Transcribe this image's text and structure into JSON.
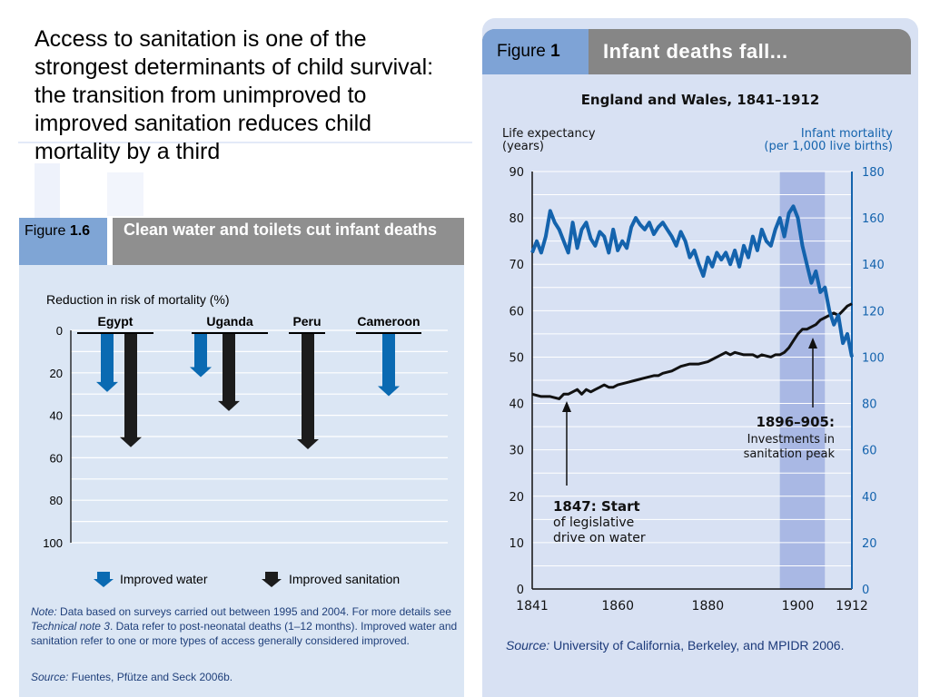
{
  "intro_text": "Access to sanitation is one of the strongest determinants of child survival: the transition from unimproved to improved sanitation reduces child mortality by a third",
  "figure_left": {
    "label_prefix": "Figure",
    "label_number": "1.6",
    "title": "Clean water and toilets cut infant deaths",
    "note_label": "Note:",
    "note_pre": " Data based on surveys carried out between 1995 and 2004. For more details see ",
    "note_ref": "Technical note 3",
    "note_post": ". Data refer to post-neonatal deaths (1–12 months). Improved water and sanitation refer to one or more types of access generally considered improved.",
    "source_label": "Source:",
    "source_text": " Fuentes, Pfütze and Seck 2006b."
  },
  "figure_right": {
    "label_prefix": "Figure",
    "label_number": "1",
    "title": "Infant deaths fall...",
    "source_label": "Source:",
    "source_text": " University of California, Berkeley, and MPIDR 2006."
  },
  "chart_data": [
    {
      "type": "bar",
      "title": "Reduction in risk of mortality (%)",
      "categories": [
        "Egypt",
        "Uganda",
        "Peru",
        "Cameroon"
      ],
      "series": [
        {
          "name": "Improved water",
          "values": [
            29,
            22,
            null,
            31
          ],
          "color": "#0a6ab2"
        },
        {
          "name": "Improved sanitation",
          "values": [
            55,
            38,
            56,
            null
          ],
          "color": "#1c1c1c"
        }
      ],
      "ylim": [
        0,
        100
      ],
      "yticks": [
        "0",
        "20",
        "40",
        "60",
        "80",
        "100"
      ],
      "y_inverted": true,
      "grid": true,
      "legend_position": "bottom"
    },
    {
      "type": "line",
      "title": "England and Wales, 1841–1912",
      "ylabel_left": "Life expectancy (years)",
      "ylabel_right": "Infant mortality (per 1,000 live births)",
      "xlim": [
        1841,
        1912
      ],
      "xticks": [
        "1841",
        "1860",
        "1880",
        "1900",
        "1912"
      ],
      "ylim_left": [
        0,
        90
      ],
      "yticks_left": [
        "0",
        "10",
        "20",
        "30",
        "40",
        "50",
        "60",
        "70",
        "80",
        "90"
      ],
      "ylim_right": [
        0,
        180
      ],
      "yticks_right": [
        "0",
        "20",
        "40",
        "60",
        "80",
        "100",
        "120",
        "140",
        "160",
        "180"
      ],
      "grid": true,
      "shaded_period": [
        1896,
        1906
      ],
      "series": [
        {
          "axis": "left",
          "color": "#111111",
          "x": [
            1841,
            1843,
            1845,
            1847,
            1848,
            1849,
            1850,
            1851,
            1852,
            1853,
            1854,
            1855,
            1856,
            1857,
            1858,
            1859,
            1860,
            1862,
            1864,
            1866,
            1868,
            1869,
            1870,
            1872,
            1874,
            1876,
            1878,
            1880,
            1881,
            1882,
            1884,
            1885,
            1886,
            1888,
            1890,
            1891,
            1892,
            1894,
            1895,
            1896,
            1897,
            1898,
            1899,
            1900,
            1901,
            1902,
            1903,
            1904,
            1905,
            1906,
            1907,
            1908,
            1909,
            1910,
            1911,
            1912
          ],
          "values": [
            42,
            41.5,
            41.5,
            41,
            42,
            42,
            42.5,
            43,
            42,
            43,
            42.5,
            43,
            43.5,
            44,
            43.5,
            43.5,
            44,
            44.5,
            45,
            45.5,
            46,
            46,
            46.5,
            47,
            48,
            48.5,
            48.5,
            49,
            49.5,
            50,
            51,
            50.5,
            51,
            50.5,
            50.5,
            50,
            50.5,
            50,
            50.5,
            50.5,
            51,
            52,
            53.5,
            55,
            56,
            56,
            56.5,
            57,
            58,
            58.5,
            59,
            59.5,
            59,
            60,
            61,
            61.5
          ]
        },
        {
          "axis": "right",
          "color": "#1463ad",
          "x": [
            1841,
            1842,
            1843,
            1844,
            1845,
            1846,
            1847,
            1848,
            1849,
            1850,
            1851,
            1852,
            1853,
            1854,
            1855,
            1856,
            1857,
            1858,
            1859,
            1860,
            1861,
            1862,
            1863,
            1864,
            1865,
            1866,
            1867,
            1868,
            1869,
            1870,
            1871,
            1872,
            1873,
            1874,
            1875,
            1876,
            1877,
            1878,
            1879,
            1880,
            1881,
            1882,
            1883,
            1884,
            1885,
            1886,
            1887,
            1888,
            1889,
            1890,
            1891,
            1892,
            1893,
            1894,
            1895,
            1896,
            1897,
            1898,
            1899,
            1900,
            1901,
            1902,
            1903,
            1904,
            1905,
            1906,
            1907,
            1908,
            1909,
            1910,
            1911,
            1912
          ],
          "values": [
            145,
            150,
            145,
            152,
            163,
            158,
            155,
            150,
            145,
            158,
            147,
            155,
            158,
            151,
            148,
            154,
            152,
            145,
            155,
            146,
            150,
            147,
            156,
            160,
            157,
            155,
            158,
            153,
            156,
            158,
            155,
            152,
            148,
            154,
            150,
            143,
            146,
            140,
            135,
            143,
            139,
            145,
            142,
            145,
            140,
            146,
            139,
            148,
            143,
            152,
            146,
            155,
            150,
            148,
            155,
            160,
            152,
            162,
            165,
            160,
            148,
            140,
            132,
            137,
            128,
            130,
            120,
            114,
            118,
            106,
            110,
            100
          ]
        }
      ]
    }
  ]
}
